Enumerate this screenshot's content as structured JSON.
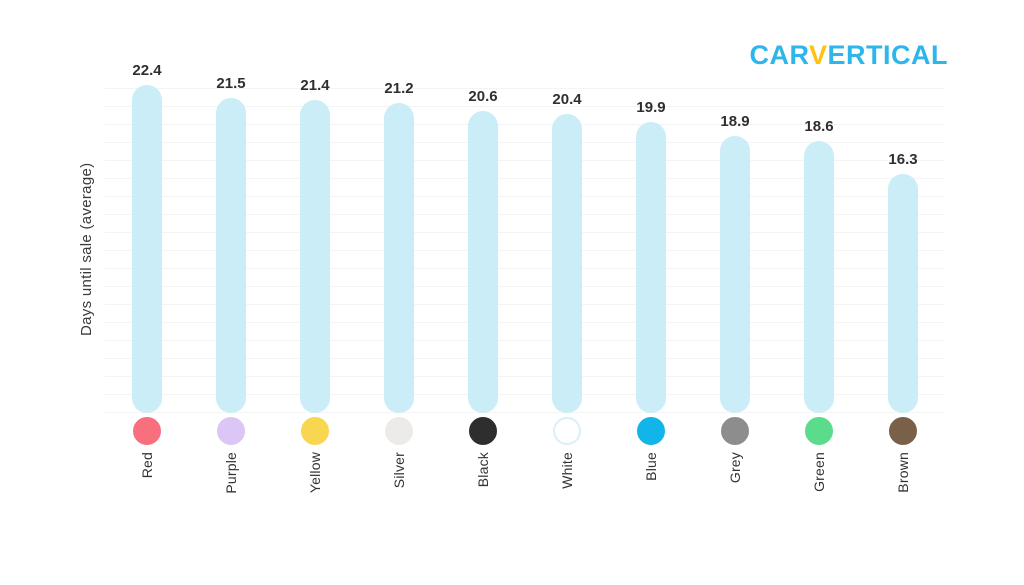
{
  "logo": {
    "part1": "CAR",
    "part2": "V",
    "part3": "ERTICAL",
    "color_primary": "#2EB6EA",
    "color_accent": "#FFC20E"
  },
  "chart_data": {
    "type": "bar",
    "title": "",
    "xlabel": "",
    "ylabel": "Days until sale (average)",
    "ylim": [
      0,
      22.4
    ],
    "grid": true,
    "legend": false,
    "bar_color": "#CBEDF8",
    "value_label_color": "#2F2F2F",
    "categories": [
      "Red",
      "Purple",
      "Yellow",
      "Silver",
      "Black",
      "White",
      "Blue",
      "Grey",
      "Green",
      "Brown"
    ],
    "values": [
      22.4,
      21.5,
      21.4,
      21.2,
      20.6,
      20.4,
      19.9,
      18.9,
      18.6,
      16.3
    ],
    "swatches": [
      {
        "label": "Red",
        "fill": "#F8707E",
        "border": "#F8707E"
      },
      {
        "label": "Purple",
        "fill": "#DCC6F6",
        "border": "#DCC6F6"
      },
      {
        "label": "Yellow",
        "fill": "#F9D64F",
        "border": "#F9D64F"
      },
      {
        "label": "Silver",
        "fill": "#ECEBE9",
        "border": "#ECEBE9"
      },
      {
        "label": "Black",
        "fill": "#2E2E2E",
        "border": "#2E2E2E"
      },
      {
        "label": "White",
        "fill": "#FFFFFF",
        "border": "#D9F0F8"
      },
      {
        "label": "Blue",
        "fill": "#12B5E9",
        "border": "#12B5E9"
      },
      {
        "label": "Grey",
        "fill": "#8D8D8D",
        "border": "#8D8D8D"
      },
      {
        "label": "Green",
        "fill": "#5BDC8C",
        "border": "#5BDC8C"
      },
      {
        "label": "Brown",
        "fill": "#796149",
        "border": "#796149"
      }
    ]
  }
}
